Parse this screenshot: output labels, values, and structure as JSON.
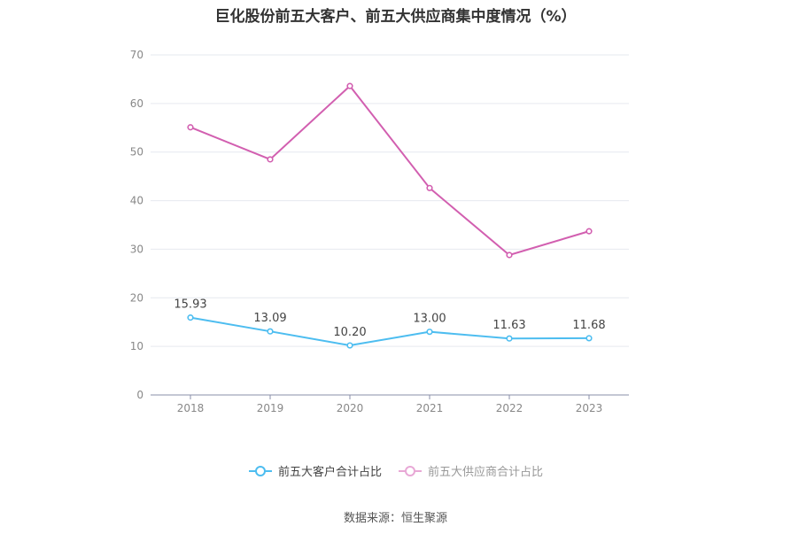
{
  "title": "巨化股份前五大客户、前五大供应商集中度情况（%）",
  "source": "数据来源：恒生聚源",
  "colors": {
    "customers": "#4dbdf0",
    "suppliers": "#d25fb0",
    "suppliers_legend": "#e8a8d6",
    "grid": "#e6e9ef",
    "axis": "#8a8fa8",
    "tick": "#888888"
  },
  "chart_data": {
    "type": "line",
    "title": "巨化股份前五大客户、前五大供应商集中度情况（%）",
    "xlabel": "",
    "ylabel": "",
    "categories": [
      "2018",
      "2019",
      "2020",
      "2021",
      "2022",
      "2023"
    ],
    "ylim": [
      0,
      70
    ],
    "yticks": [
      0,
      10,
      20,
      30,
      40,
      50,
      60,
      70
    ],
    "grid": true,
    "legend_position": "bottom",
    "series": [
      {
        "name": "前五大客户合计占比",
        "values": [
          15.93,
          13.09,
          10.2,
          13.0,
          11.63,
          11.68
        ],
        "labels": [
          "15.93",
          "13.09",
          "10.20",
          "13.00",
          "11.63",
          "11.68"
        ],
        "show_labels": true
      },
      {
        "name": "前五大供应商合计占比",
        "values": [
          55.1,
          48.5,
          63.6,
          42.6,
          28.8,
          33.7
        ],
        "show_labels": false
      }
    ]
  }
}
